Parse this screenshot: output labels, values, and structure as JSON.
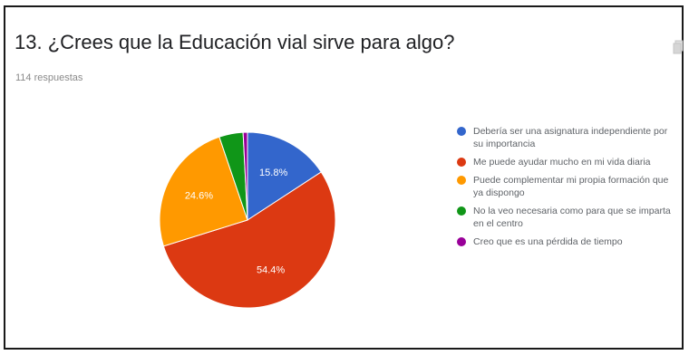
{
  "question": {
    "title": "13. ¿Crees que la Educación vial sirve para algo?",
    "responses": "114 respuestas"
  },
  "icons": {
    "copy": "copy-icon"
  },
  "chart_data": {
    "type": "pie",
    "start_angle_deg": 90,
    "direction": "clockwise",
    "slices": [
      {
        "label": "Debería ser una asignatura independiente por su importancia",
        "value": 15.8,
        "color": "#3366cc",
        "data_label": "15.8%"
      },
      {
        "label": "Me puede ayudar mucho en mi vida diaria",
        "value": 54.4,
        "color": "#dc3912",
        "data_label": "54.4%"
      },
      {
        "label": "Puede complementar mi propia formación que ya dispongo",
        "value": 24.6,
        "color": "#ff9900",
        "data_label": "24.6%"
      },
      {
        "label": "No la veo necesaria como para que se imparta en el centro",
        "value": 4.4,
        "color": "#109618",
        "data_label": ""
      },
      {
        "label": "Creo que es una pérdida de tiempo",
        "value": 0.8,
        "color": "#990099",
        "data_label": ""
      }
    ],
    "legend_position": "right"
  }
}
